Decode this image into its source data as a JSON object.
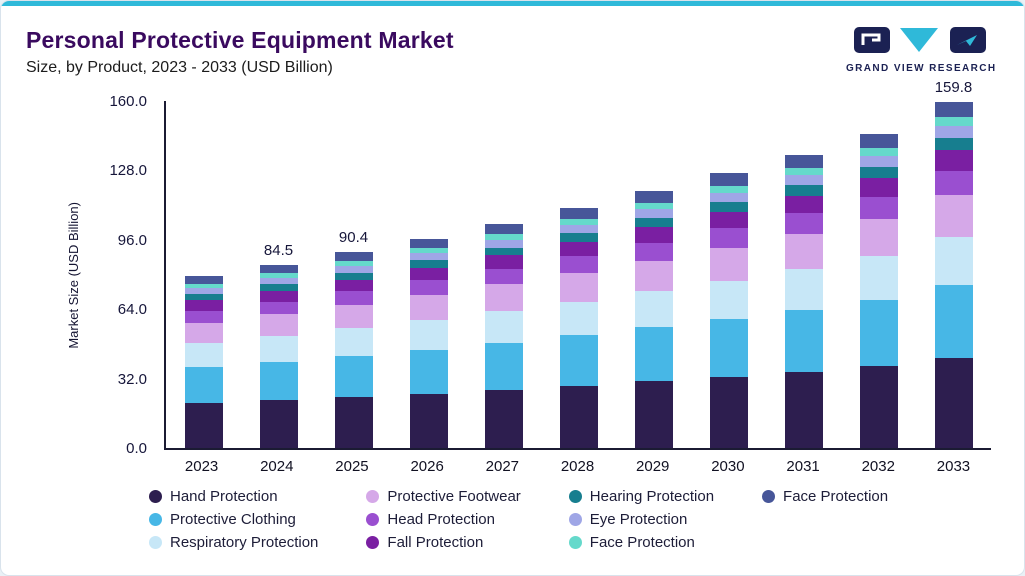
{
  "colors": {
    "accent": "#2FB9D9",
    "title": "#3A0A5F",
    "logo_navy": "#1B2153",
    "axis": "#1B1B33"
  },
  "header": {
    "title": "Personal Protective Equipment Market",
    "subtitle": "Size, by Product, 2023 - 2033 (USD Billion)",
    "logo_text": "GRAND VIEW RESEARCH"
  },
  "chart_data": {
    "type": "bar",
    "stacked": true,
    "title": "Personal Protective Equipment Market Size, by Product, 2023 - 2033 (USD Billion)",
    "categories": [
      "2023",
      "2024",
      "2025",
      "2026",
      "2027",
      "2028",
      "2029",
      "2030",
      "2031",
      "2032",
      "2033"
    ],
    "xlabel": "",
    "ylabel": "Market Size (USD Billion)",
    "ylim": [
      0,
      160
    ],
    "yticks": [
      0.0,
      32.0,
      64.0,
      96.0,
      128.0,
      160.0
    ],
    "ytick_labels": [
      "0.0",
      "32.0",
      "64.0",
      "96.0",
      "128.0",
      "160.0"
    ],
    "grid": false,
    "legend_position": "bottom",
    "bar_total_labels": [
      "",
      "84.5",
      "90.4",
      "",
      "",
      "",
      "",
      "",
      "",
      "",
      "159.8"
    ],
    "series": [
      {
        "name": "Hand Protection",
        "color": "#2D1E4F",
        "values": [
          20.6,
          22.0,
          23.5,
          25.1,
          26.9,
          28.8,
          30.8,
          32.9,
          35.2,
          37.7,
          41.5
        ]
      },
      {
        "name": "Protective Clothing",
        "color": "#47B7E6",
        "values": [
          16.6,
          17.7,
          19.0,
          20.3,
          21.7,
          23.2,
          24.8,
          26.6,
          28.4,
          30.4,
          33.6
        ]
      },
      {
        "name": "Respiratory Protection",
        "color": "#C7E7F7",
        "values": [
          11.1,
          11.8,
          12.7,
          13.5,
          14.5,
          15.5,
          16.6,
          17.7,
          19.0,
          20.3,
          22.4
        ]
      },
      {
        "name": "Protective Footwear",
        "color": "#D5A8E8",
        "values": [
          9.5,
          10.1,
          10.8,
          11.6,
          12.4,
          13.3,
          14.2,
          15.2,
          16.2,
          17.4,
          19.2
        ]
      },
      {
        "name": "Head Protection",
        "color": "#9A4FD0",
        "values": [
          5.5,
          5.9,
          6.3,
          6.8,
          7.2,
          7.7,
          8.3,
          8.9,
          9.5,
          10.1,
          11.2
        ]
      },
      {
        "name": "Fall Protection",
        "color": "#7A1FA2",
        "values": [
          4.8,
          5.1,
          5.3,
          5.8,
          6.2,
          6.6,
          7.1,
          7.6,
          8.1,
          8.7,
          9.6
        ]
      },
      {
        "name": "Hearing Protection",
        "color": "#177E8F",
        "values": [
          2.8,
          3.0,
          3.2,
          3.4,
          3.6,
          3.9,
          4.1,
          4.4,
          4.7,
          5.1,
          5.6
        ]
      },
      {
        "name": "Eye Protection",
        "color": "#9FA6E6",
        "values": [
          2.8,
          3.0,
          3.2,
          3.4,
          3.6,
          3.9,
          4.1,
          4.4,
          4.7,
          5.1,
          5.6
        ]
      },
      {
        "name": "Face Protection",
        "color": "#65D9CB",
        "values": [
          2.0,
          2.1,
          2.3,
          2.4,
          2.6,
          2.8,
          3.0,
          3.2,
          3.4,
          3.6,
          4.0
        ]
      },
      {
        "name": "Face Protection",
        "color": "#475699",
        "values": [
          3.6,
          3.8,
          4.1,
          4.3,
          4.7,
          5.0,
          5.3,
          5.7,
          6.1,
          6.5,
          7.1
        ]
      }
    ]
  },
  "legend": {
    "items": [
      {
        "label": "Hand Protection",
        "color": "#2D1E4F"
      },
      {
        "label": "Protective Clothing",
        "color": "#47B7E6"
      },
      {
        "label": "Respiratory Protection",
        "color": "#C7E7F7"
      },
      {
        "label": "Protective Footwear",
        "color": "#D5A8E8"
      },
      {
        "label": "Head Protection",
        "color": "#9A4FD0"
      },
      {
        "label": "Fall Protection",
        "color": "#7A1FA2"
      },
      {
        "label": "Hearing Protection",
        "color": "#177E8F"
      },
      {
        "label": "Eye Protection",
        "color": "#9FA6E6"
      },
      {
        "label": "Face Protection",
        "color": "#65D9CB"
      },
      {
        "label": "Face Protection",
        "color": "#475699"
      }
    ]
  }
}
